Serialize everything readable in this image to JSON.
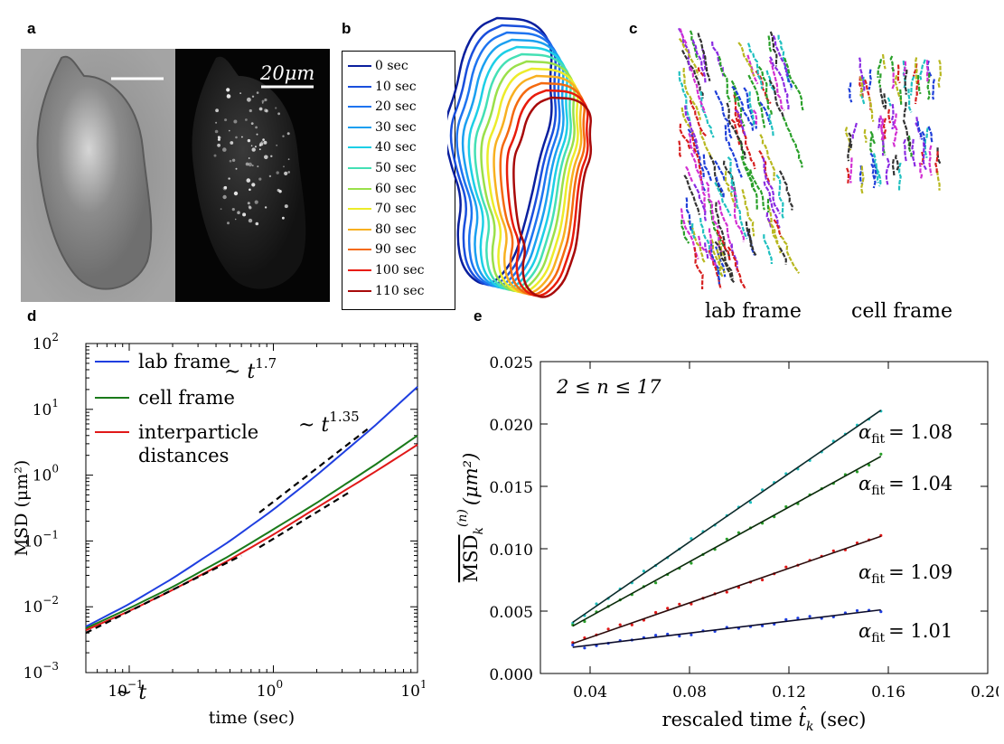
{
  "panels": {
    "a": {
      "letter": "a",
      "scale_bar_label": "20μm"
    },
    "b": {
      "letter": "b",
      "legend": [
        {
          "label": "0 sec",
          "color": "#0a1f9e"
        },
        {
          "label": "10 sec",
          "color": "#1a4fdc"
        },
        {
          "label": "20 sec",
          "color": "#1e74f0"
        },
        {
          "label": "30 sec",
          "color": "#1ba0f0"
        },
        {
          "label": "40 sec",
          "color": "#1dcfe6"
        },
        {
          "label": "50 sec",
          "color": "#44e0b4"
        },
        {
          "label": "60 sec",
          "color": "#9ae04a"
        },
        {
          "label": "70 sec",
          "color": "#ecec2a"
        },
        {
          "label": "80 sec",
          "color": "#f8b020"
        },
        {
          "label": "90 sec",
          "color": "#f46a10"
        },
        {
          "label": "100 sec",
          "color": "#e81c0c"
        },
        {
          "label": "110 sec",
          "color": "#a80a0a"
        }
      ]
    },
    "c": {
      "letter": "c",
      "label_lab": "lab frame",
      "label_cell": "cell frame",
      "track_colors": [
        "#1f3fd8",
        "#d61f1f",
        "#2aa02a",
        "#d22fd2",
        "#20c0c0",
        "#b8b820",
        "#333333",
        "#8a2be2"
      ]
    },
    "d": {
      "letter": "d"
    },
    "e": {
      "letter": "e"
    }
  },
  "chart_data": [
    {
      "type": "line",
      "panel": "d",
      "xlabel": "time (sec)",
      "ylabel": "MSD (μm²)",
      "xscale": "log",
      "yscale": "log",
      "xlim": [
        0.05,
        10
      ],
      "ylim": [
        0.001,
        100
      ],
      "xticks": [
        {
          "label": "10",
          "exp": "−1",
          "value": 0.1
        },
        {
          "label": "10",
          "exp": "0",
          "value": 1
        },
        {
          "label": "10",
          "exp": "1",
          "value": 10
        }
      ],
      "yticks": [
        {
          "label": "10",
          "exp": "−3",
          "value": 0.001
        },
        {
          "label": "10",
          "exp": "−2",
          "value": 0.01
        },
        {
          "label": "10",
          "exp": "−1",
          "value": 0.1
        },
        {
          "label": "10",
          "exp": "0",
          "value": 1
        },
        {
          "label": "10",
          "exp": "1",
          "value": 10
        },
        {
          "label": "10",
          "exp": "2",
          "value": 100
        }
      ],
      "legend_position": "top-left",
      "series": [
        {
          "name": "lab frame",
          "color": "#1f3fe0",
          "x": [
            0.05,
            0.1,
            0.2,
            0.5,
            1,
            2,
            5,
            10
          ],
          "y": [
            0.005,
            0.011,
            0.027,
            0.1,
            0.3,
            1.0,
            5.5,
            22
          ]
        },
        {
          "name": "cell frame",
          "color": "#1a7a1a",
          "x": [
            0.05,
            0.1,
            0.2,
            0.5,
            1,
            2,
            5,
            10
          ],
          "y": [
            0.0047,
            0.0095,
            0.02,
            0.06,
            0.15,
            0.38,
            1.4,
            4.0
          ]
        },
        {
          "name_lines": [
            "interparticle",
            "distances"
          ],
          "color": "#e01818",
          "x": [
            0.05,
            0.1,
            0.2,
            0.5,
            1,
            2,
            5,
            10
          ],
          "y": [
            0.0044,
            0.0086,
            0.018,
            0.052,
            0.125,
            0.32,
            1.1,
            2.9
          ]
        }
      ],
      "reference_lines": [
        {
          "label_base": "~ t",
          "label_exp": "",
          "x": [
            0.05,
            0.6
          ],
          "y": [
            0.004,
            0.06
          ]
        },
        {
          "label_base": "~ t",
          "label_exp": "1.35",
          "x": [
            0.8,
            3.5
          ],
          "y": [
            0.08,
            0.58
          ]
        },
        {
          "label_base": "~ t",
          "label_exp": "1.7",
          "x": [
            0.8,
            4.5
          ],
          "y": [
            0.27,
            5.0
          ]
        }
      ]
    },
    {
      "type": "line",
      "panel": "e",
      "xlabel_text": "rescaled time ",
      "xlabel_symbol": "t̂",
      "xlabel_sub": "k",
      "xlabel_unit": " (sec)",
      "ylabel_symbol": "MSD",
      "ylabel_sub": "k",
      "ylabel_sup": "(n)",
      "ylabel_unit": "(μm²)",
      "xlim": [
        0.02,
        0.2
      ],
      "ylim": [
        0.0,
        0.025
      ],
      "xticks": [
        "0.04",
        "0.08",
        "0.12",
        "0.16",
        "0.20"
      ],
      "xtick_values": [
        0.04,
        0.08,
        0.12,
        0.16,
        0.2
      ],
      "yticks": [
        "0.000",
        "0.005",
        "0.010",
        "0.015",
        "0.020",
        "0.025"
      ],
      "ytick_values": [
        0.0,
        0.005,
        0.01,
        0.015,
        0.02,
        0.025
      ],
      "annotation": "2 ≤ n ≤ 17",
      "series": [
        {
          "color": "#20c0c0",
          "fit_color": "#0b2b2b",
          "x": [
            0.033,
            0.157
          ],
          "y": [
            0.0041,
            0.0211
          ],
          "alpha_label": "α",
          "alpha_sub": "fit",
          "alpha_value": "= 1.08"
        },
        {
          "color": "#2aa02a",
          "fit_color": "#0b2b0b",
          "x": [
            0.033,
            0.157
          ],
          "y": [
            0.0038,
            0.0174
          ],
          "alpha_label": "α",
          "alpha_sub": "fit",
          "alpha_value": "= 1.04"
        },
        {
          "color": "#e01818",
          "fit_color": "#2b0b0b",
          "x": [
            0.033,
            0.157
          ],
          "y": [
            0.0024,
            0.011
          ],
          "alpha_label": "α",
          "alpha_sub": "fit",
          "alpha_value": "= 1.09"
        },
        {
          "color": "#1f3fe0",
          "fit_color": "#0b0b2b",
          "x": [
            0.033,
            0.157
          ],
          "y": [
            0.0021,
            0.0051
          ],
          "alpha_label": "α",
          "alpha_sub": "fit",
          "alpha_value": "= 1.01"
        }
      ]
    }
  ]
}
